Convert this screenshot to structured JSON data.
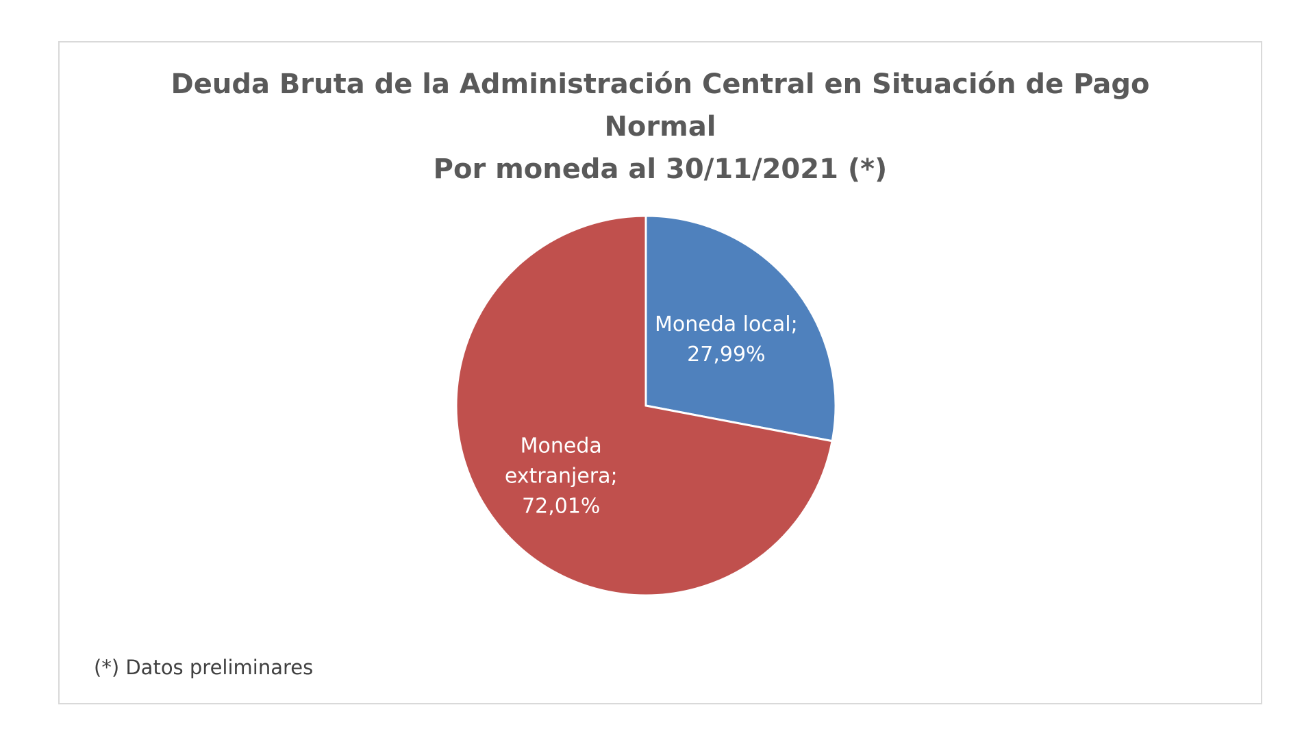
{
  "chart_data": {
    "type": "pie",
    "title_lines": [
      "Deuda Bruta de la Administración Central en Situación de Pago",
      "Normal",
      "Por moneda al 30/11/2021 (*)"
    ],
    "slices": [
      {
        "name": "Moneda local",
        "value": 27.99,
        "color": "#4f81bd",
        "label_lines": [
          "Moneda local;",
          "27,99%"
        ]
      },
      {
        "name": "Moneda extranjera",
        "value": 72.01,
        "color": "#c0504d",
        "label_lines": [
          "Moneda",
          "extranjera;",
          "72,01%"
        ]
      }
    ],
    "start_angle_deg": 0,
    "direction": "clockwise",
    "legend": "none",
    "footnote": "(*) Datos preliminares"
  }
}
